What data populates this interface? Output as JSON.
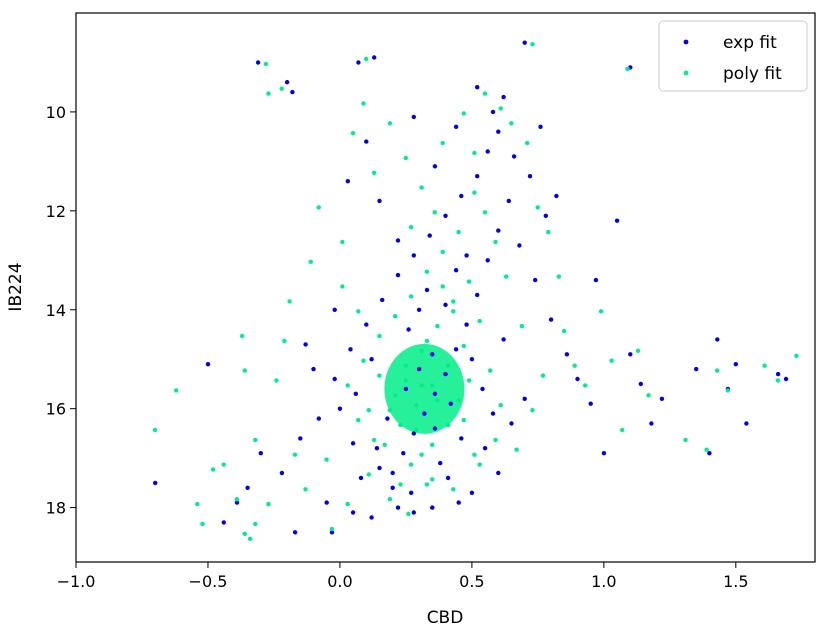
{
  "chart_data": {
    "type": "scatter",
    "xlabel": "CBD",
    "ylabel": "IB224",
    "xlim": [
      -1.0,
      1.8
    ],
    "ylim": [
      19.1,
      8.0
    ],
    "y_inverted": true,
    "xticks": [
      -1.0,
      -0.5,
      0.0,
      0.5,
      1.0,
      1.5
    ],
    "xtick_labels": [
      "−1.0",
      "−0.5",
      "0.0",
      "0.5",
      "1.0",
      "1.5"
    ],
    "yticks": [
      10,
      12,
      14,
      16,
      18
    ],
    "ytick_labels": [
      "10",
      "12",
      "14",
      "16",
      "18"
    ],
    "grid": false,
    "legend_position": "top-right",
    "series": [
      {
        "name": "exp fit",
        "color": "#0000ee",
        "points": [
          [
            -0.31,
            9.0
          ],
          [
            -0.2,
            9.4
          ],
          [
            -0.18,
            9.6
          ],
          [
            0.07,
            9.0
          ],
          [
            0.13,
            8.9
          ],
          [
            0.7,
            8.6
          ],
          [
            1.1,
            9.1
          ],
          [
            -0.5,
            15.1
          ],
          [
            -0.44,
            18.3
          ],
          [
            -0.39,
            17.9
          ],
          [
            -0.35,
            17.6
          ],
          [
            -0.3,
            16.9
          ],
          [
            -0.22,
            17.3
          ],
          [
            -0.17,
            18.5
          ],
          [
            -0.15,
            16.6
          ],
          [
            -0.08,
            16.2
          ],
          [
            -0.05,
            17.9
          ],
          [
            -0.03,
            18.5
          ],
          [
            -0.1,
            15.2
          ],
          [
            -0.13,
            14.7
          ],
          [
            -0.02,
            14.0
          ],
          [
            0.05,
            18.1
          ],
          [
            0.12,
            18.2
          ],
          [
            -0.7,
            17.5
          ],
          [
            0.03,
            11.4
          ],
          [
            0.1,
            10.6
          ],
          [
            0.15,
            11.8
          ],
          [
            0.22,
            12.6
          ],
          [
            0.28,
            10.1
          ],
          [
            0.36,
            11.1
          ],
          [
            0.44,
            10.3
          ],
          [
            0.52,
            9.5
          ],
          [
            0.58,
            10.0
          ],
          [
            0.62,
            9.7
          ],
          [
            0.66,
            10.9
          ],
          [
            0.72,
            11.3
          ],
          [
            0.78,
            12.1
          ],
          [
            0.82,
            11.7
          ],
          [
            0.76,
            10.3
          ],
          [
            0.68,
            12.7
          ],
          [
            0.74,
            13.4
          ],
          [
            0.8,
            14.2
          ],
          [
            0.86,
            14.9
          ],
          [
            0.9,
            15.4
          ],
          [
            0.95,
            15.9
          ],
          [
            1.0,
            16.9
          ],
          [
            0.97,
            13.4
          ],
          [
            1.05,
            12.2
          ],
          [
            1.1,
            14.9
          ],
          [
            1.14,
            15.5
          ],
          [
            1.18,
            16.3
          ],
          [
            1.22,
            15.8
          ],
          [
            1.35,
            15.2
          ],
          [
            1.4,
            16.9
          ],
          [
            1.43,
            14.6
          ],
          [
            1.47,
            15.6
          ],
          [
            1.5,
            15.1
          ],
          [
            1.54,
            16.3
          ],
          [
            1.66,
            15.3
          ],
          [
            1.69,
            15.4
          ],
          [
            0.6,
            17.3
          ],
          [
            0.55,
            16.8
          ],
          [
            0.65,
            16.3
          ],
          [
            0.7,
            15.8
          ],
          [
            0.5,
            17.7
          ],
          [
            0.45,
            17.9
          ],
          [
            0.35,
            18.0
          ],
          [
            0.28,
            18.1
          ],
          [
            0.2,
            17.6
          ],
          [
            0.15,
            17.2
          ],
          [
            0.05,
            16.7
          ],
          [
            0.0,
            16.0
          ],
          [
            -0.02,
            15.4
          ],
          [
            0.04,
            14.8
          ],
          [
            0.1,
            14.3
          ],
          [
            0.16,
            13.8
          ],
          [
            0.22,
            13.3
          ],
          [
            0.28,
            12.9
          ],
          [
            0.34,
            12.5
          ],
          [
            0.4,
            12.1
          ],
          [
            0.46,
            11.7
          ],
          [
            0.52,
            11.3
          ],
          [
            0.56,
            10.8
          ],
          [
            0.6,
            10.4
          ],
          [
            0.64,
            11.8
          ],
          [
            0.6,
            12.4
          ],
          [
            0.56,
            13.0
          ],
          [
            0.52,
            13.7
          ],
          [
            0.48,
            14.3
          ],
          [
            0.44,
            14.8
          ],
          [
            0.4,
            15.3
          ],
          [
            0.36,
            15.7
          ],
          [
            0.32,
            16.1
          ],
          [
            0.28,
            16.5
          ],
          [
            0.24,
            16.9
          ],
          [
            0.2,
            17.3
          ],
          [
            0.3,
            15.2
          ],
          [
            0.25,
            15.6
          ],
          [
            0.35,
            14.9
          ],
          [
            0.42,
            15.9
          ],
          [
            0.18,
            16.2
          ],
          [
            0.46,
            16.6
          ],
          [
            0.12,
            15.0
          ],
          [
            0.5,
            15.0
          ],
          [
            0.38,
            17.1
          ],
          [
            0.26,
            14.4
          ],
          [
            0.33,
            13.6
          ],
          [
            0.4,
            13.9
          ],
          [
            0.14,
            16.8
          ],
          [
            0.06,
            15.7
          ],
          [
            0.54,
            15.6
          ],
          [
            0.58,
            16.1
          ],
          [
            0.62,
            14.6
          ],
          [
            0.08,
            17.4
          ],
          [
            0.22,
            18.0
          ],
          [
            0.48,
            12.9
          ],
          [
            0.44,
            13.2
          ],
          [
            0.3,
            14.0
          ],
          [
            0.36,
            16.4
          ],
          [
            0.27,
            17.7
          ],
          [
            0.41,
            17.4
          ]
        ]
      },
      {
        "name": "poly fit",
        "color": "#00ee88",
        "points": [
          [
            -0.29,
            9.0
          ],
          [
            -0.23,
            9.5
          ],
          [
            -0.28,
            9.6
          ],
          [
            0.09,
            8.9
          ],
          [
            0.72,
            8.6
          ],
          [
            1.08,
            9.1
          ],
          [
            -0.71,
            16.4
          ],
          [
            -0.63,
            15.6
          ],
          [
            -0.55,
            17.9
          ],
          [
            -0.53,
            18.3
          ],
          [
            -0.49,
            17.2
          ],
          [
            -0.45,
            17.1
          ],
          [
            -0.4,
            17.8
          ],
          [
            -0.37,
            18.5
          ],
          [
            -0.35,
            18.6
          ],
          [
            -0.33,
            18.3
          ],
          [
            -0.38,
            14.5
          ],
          [
            -0.37,
            15.2
          ],
          [
            -0.33,
            16.6
          ],
          [
            -0.28,
            17.9
          ],
          [
            -0.25,
            15.4
          ],
          [
            -0.22,
            14.6
          ],
          [
            -0.2,
            13.8
          ],
          [
            -0.18,
            16.9
          ],
          [
            -0.14,
            17.6
          ],
          [
            -0.12,
            13.0
          ],
          [
            -0.09,
            11.9
          ],
          [
            -0.06,
            17.0
          ],
          [
            -0.04,
            18.4
          ],
          [
            0.0,
            12.6
          ],
          [
            0.04,
            10.4
          ],
          [
            0.08,
            9.8
          ],
          [
            0.12,
            11.2
          ],
          [
            0.18,
            10.2
          ],
          [
            0.24,
            10.9
          ],
          [
            0.3,
            11.5
          ],
          [
            0.38,
            10.6
          ],
          [
            0.46,
            10.0
          ],
          [
            0.5,
            10.8
          ],
          [
            0.54,
            9.6
          ],
          [
            0.6,
            9.9
          ],
          [
            0.64,
            10.2
          ],
          [
            0.7,
            10.6
          ],
          [
            0.74,
            11.9
          ],
          [
            0.78,
            12.4
          ],
          [
            0.82,
            13.3
          ],
          [
            0.84,
            14.4
          ],
          [
            0.88,
            15.1
          ],
          [
            0.92,
            15.5
          ],
          [
            0.98,
            14.0
          ],
          [
            1.02,
            15.0
          ],
          [
            1.06,
            16.4
          ],
          [
            1.12,
            14.8
          ],
          [
            1.16,
            15.7
          ],
          [
            1.3,
            16.6
          ],
          [
            1.38,
            16.8
          ],
          [
            1.42,
            15.2
          ],
          [
            1.46,
            15.6
          ],
          [
            1.6,
            15.1
          ],
          [
            1.65,
            15.4
          ],
          [
            1.72,
            14.9
          ],
          [
            0.02,
            17.9
          ],
          [
            0.1,
            17.3
          ],
          [
            0.18,
            17.8
          ],
          [
            0.25,
            18.1
          ],
          [
            0.32,
            17.5
          ],
          [
            0.42,
            17.6
          ],
          [
            0.52,
            17.1
          ],
          [
            0.58,
            16.6
          ],
          [
            0.66,
            16.8
          ],
          [
            0.72,
            16.0
          ],
          [
            0.76,
            15.3
          ],
          [
            0.68,
            14.3
          ],
          [
            0.62,
            13.3
          ],
          [
            0.58,
            12.6
          ],
          [
            0.54,
            12.0
          ],
          [
            0.5,
            11.6
          ],
          [
            0.44,
            12.4
          ],
          [
            0.38,
            12.8
          ],
          [
            0.32,
            13.2
          ],
          [
            0.26,
            13.7
          ],
          [
            0.2,
            14.1
          ],
          [
            0.14,
            14.5
          ],
          [
            0.08,
            15.0
          ],
          [
            0.02,
            15.5
          ],
          [
            0.06,
            16.2
          ],
          [
            0.12,
            16.6
          ],
          [
            0.18,
            16.0
          ],
          [
            0.24,
            15.4
          ],
          [
            0.3,
            14.8
          ],
          [
            0.36,
            14.3
          ],
          [
            0.42,
            13.8
          ],
          [
            0.48,
            13.4
          ],
          [
            0.52,
            14.2
          ],
          [
            0.46,
            14.7
          ],
          [
            0.4,
            15.1
          ],
          [
            0.34,
            15.5
          ],
          [
            0.28,
            15.9
          ],
          [
            0.22,
            16.3
          ],
          [
            0.16,
            16.7
          ],
          [
            0.26,
            17.1
          ],
          [
            0.34,
            16.7
          ],
          [
            0.4,
            16.3
          ],
          [
            0.44,
            15.8
          ],
          [
            0.48,
            15.4
          ],
          [
            0.3,
            15.5
          ],
          [
            0.36,
            15.8
          ],
          [
            0.24,
            15.1
          ],
          [
            0.32,
            14.6
          ],
          [
            0.38,
            13.5
          ],
          [
            0.28,
            16.4
          ],
          [
            0.2,
            15.7
          ],
          [
            0.46,
            16.2
          ],
          [
            0.14,
            15.3
          ],
          [
            0.56,
            15.2
          ],
          [
            0.1,
            16.0
          ],
          [
            0.34,
            17.4
          ],
          [
            0.42,
            14.0
          ],
          [
            0.26,
            12.3
          ],
          [
            0.35,
            12.0
          ],
          [
            0.3,
            16.9
          ],
          [
            0.22,
            17.5
          ],
          [
            0.5,
            16.9
          ],
          [
            0.06,
            14.0
          ],
          [
            0.0,
            13.5
          ],
          [
            0.6,
            15.9
          ]
        ]
      }
    ]
  }
}
